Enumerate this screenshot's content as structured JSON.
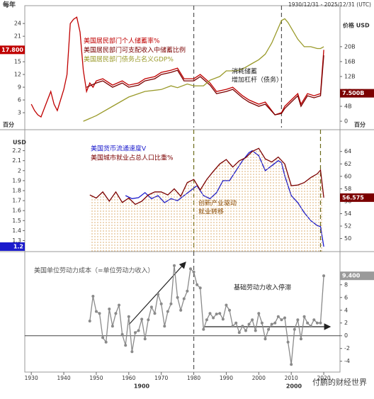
{
  "header": {
    "unit": "每年",
    "range": "1930/12/31 - 2025/12/31 (UTC)",
    "watermark": "付鹏的财经世界"
  },
  "x_axis": {
    "xlim": [
      1928,
      2025
    ],
    "xticks": [
      1930,
      1940,
      1950,
      1960,
      1970,
      1980,
      1990,
      2000,
      2010,
      2020
    ],
    "era_labels": [
      "1900",
      "2000"
    ]
  },
  "chart_data": [
    {
      "type": "line",
      "y_title": "百分",
      "y2_title": "价格 USD",
      "y2_unit": "百分",
      "ylim": [
        -0.5,
        28.2
      ],
      "yticks": [
        3,
        6,
        9,
        12,
        15,
        18,
        21,
        24
      ],
      "y2lim": [
        -1.7,
        31
      ],
      "y2ticks": [
        0,
        {
          "value": 4,
          "label": "4B"
        },
        {
          "value": 8,
          "label": "8B"
        },
        {
          "value": 12,
          "label": "12B"
        },
        {
          "value": 16,
          "label": "16B"
        },
        {
          "value": 20,
          "label": "20B"
        }
      ],
      "annotations": [
        "消耗储蓄",
        "增加杠杆（债务）"
      ],
      "vlines": [
        {
          "x": 1980,
          "color": "#555555"
        },
        {
          "x": 2007,
          "color": "#555555"
        }
      ],
      "end_labels": [
        {
          "label": "17.800",
          "value": 17.8,
          "axis": "y",
          "color": "#c00000"
        },
        {
          "label": "7.500B",
          "value": 7.5,
          "axis": "y2",
          "color": "#7b0000"
        }
      ],
      "series": [
        {
          "name": "美国居民部门个人储蓄率%",
          "color": "#c00000",
          "axis": "y",
          "x": [
            1930,
            1931,
            1932,
            1933,
            1934,
            1935,
            1936,
            1937,
            1938,
            1939,
            1940,
            1941,
            1942,
            1943,
            1944,
            1945,
            1946,
            1947,
            1948,
            1949,
            1950,
            1952,
            1955,
            1958,
            1960,
            1963,
            1965,
            1968,
            1970,
            1973,
            1975,
            1977,
            1980,
            1982,
            1985,
            1987,
            1990,
            1992,
            1995,
            1997,
            2000,
            2002,
            2005,
            2007,
            2008,
            2010,
            2012,
            2013,
            2015,
            2017,
            2019,
            2020
          ],
          "values": [
            5,
            3.5,
            2.5,
            2,
            4,
            6,
            8,
            5,
            3.5,
            6,
            8.5,
            12,
            24,
            25,
            25.5,
            22,
            13,
            8,
            10,
            9,
            10.5,
            11,
            9.5,
            10.5,
            9.5,
            10,
            11,
            11.5,
            12.5,
            13,
            13.5,
            11,
            11,
            12,
            10,
            8,
            8.5,
            9,
            7,
            6,
            5,
            5.5,
            2.5,
            3,
            4.5,
            6,
            7.5,
            5,
            7.5,
            7,
            7.5,
            17.8
          ]
        },
        {
          "name": "美国居民部门可支配收入中储蓄比例",
          "color": "#7b0000",
          "axis": "y",
          "x": [
            1947,
            1950,
            1952,
            1955,
            1958,
            1960,
            1963,
            1965,
            1968,
            1970,
            1973,
            1975,
            1977,
            1980,
            1982,
            1985,
            1987,
            1990,
            1992,
            1995,
            1997,
            2000,
            2002,
            2005,
            2007,
            2008,
            2010,
            2012,
            2013,
            2015,
            2017,
            2019,
            2020
          ],
          "values": [
            9,
            10,
            10.5,
            9,
            10,
            9,
            9.5,
            10.5,
            11,
            12,
            12.5,
            13,
            10.5,
            10.5,
            11.5,
            9.5,
            7.5,
            8,
            8.5,
            6.5,
            5.5,
            4.5,
            5,
            2.5,
            2.8,
            4,
            5.5,
            7,
            4.5,
            7,
            6.5,
            7,
            16.5
          ]
        },
        {
          "name": "美国居民部门债务占名义GDP%",
          "color": "#9a9a2a",
          "axis": "y2",
          "x": [
            1946,
            1950,
            1955,
            1960,
            1965,
            1970,
            1973,
            1975,
            1978,
            1980,
            1983,
            1985,
            1988,
            1990,
            1993,
            1995,
            1998,
            2000,
            2002,
            2004,
            2006,
            2007,
            2008,
            2009,
            2010,
            2012,
            2014,
            2016,
            2018,
            2019,
            2020
          ],
          "values": [
            0,
            1.5,
            4,
            6.5,
            8,
            8.5,
            9.5,
            9,
            10,
            9.5,
            9.5,
            11,
            12,
            13.5,
            13.5,
            14,
            15.5,
            16.5,
            18,
            21,
            25,
            27,
            27.5,
            26.5,
            25,
            22,
            20,
            20,
            19.5,
            19.5,
            20
          ]
        }
      ]
    },
    {
      "type": "line",
      "y_title": "USD",
      "ylim": [
        1.19,
        2.41
      ],
      "yticks": [
        1.3,
        1.4,
        1.5,
        1.6,
        1.7,
        1.8,
        1.9,
        2,
        2.1,
        2.2
      ],
      "y2lim": [
        47.9,
        67.5
      ],
      "y2ticks": [
        50,
        52,
        54,
        56,
        58,
        60,
        62,
        64
      ],
      "annotations": [
        "创新产业驱动",
        "就业转移"
      ],
      "vlines": [
        {
          "x": 1980,
          "color": "#6b6b1a"
        },
        {
          "x": 2019,
          "color": "#6b6b1a"
        }
      ],
      "end_labels": [
        {
          "label": "56.575",
          "value": 56.575,
          "axis": "y2",
          "color": "#7b0000"
        },
        {
          "label": "1.2",
          "value": 1.24,
          "axis": "y",
          "color": "#1a1acc"
        }
      ],
      "series": [
        {
          "name": "美国货币流通速度V",
          "color": "#1a1acc",
          "axis": "y",
          "x": [
            1959,
            1961,
            1963,
            1965,
            1967,
            1969,
            1971,
            1973,
            1975,
            1977,
            1979,
            1981,
            1983,
            1985,
            1987,
            1989,
            1991,
            1993,
            1995,
            1997,
            1998,
            2000,
            2002,
            2004,
            2006,
            2007,
            2008,
            2010,
            2012,
            2014,
            2016,
            2018,
            2019,
            2020
          ],
          "values": [
            1.75,
            1.72,
            1.73,
            1.78,
            1.72,
            1.75,
            1.68,
            1.72,
            1.7,
            1.75,
            1.8,
            1.85,
            1.75,
            1.72,
            1.78,
            1.9,
            1.9,
            2,
            2.1,
            2.18,
            2.2,
            2.15,
            2,
            2.05,
            2.1,
            2.08,
            1.95,
            1.75,
            1.68,
            1.58,
            1.5,
            1.45,
            1.44,
            1.24
          ]
        },
        {
          "name": "美国城市就业占总人口比重%",
          "color": "#7b0000",
          "axis": "y2",
          "fill": true,
          "x": [
            1948,
            1950,
            1952,
            1954,
            1956,
            1958,
            1960,
            1962,
            1964,
            1966,
            1968,
            1970,
            1972,
            1974,
            1976,
            1978,
            1980,
            1982,
            1984,
            1986,
            1988,
            1990,
            1992,
            1994,
            1996,
            1998,
            2000,
            2002,
            2004,
            2006,
            2008,
            2010,
            2012,
            2014,
            2016,
            2018,
            2019,
            2020
          ],
          "values": [
            57,
            56.5,
            57.5,
            56,
            57.5,
            55.8,
            56.5,
            55.5,
            56,
            57,
            57.5,
            57.5,
            57,
            58,
            56.8,
            59,
            59.5,
            57.8,
            59.5,
            60.8,
            62,
            62.7,
            61.5,
            62.5,
            63,
            64,
            64.5,
            62.8,
            62.3,
            63.1,
            62,
            58.5,
            58.6,
            59,
            59.8,
            60.4,
            61,
            56.575
          ]
        }
      ]
    },
    {
      "type": "line",
      "title": "美国单位劳动力成本（=单位劳动力收入）",
      "y2lim": [
        -5.7,
        13.2
      ],
      "y2ticks": [
        -4,
        -2,
        0,
        2,
        4,
        6,
        8
      ],
      "annotations": [
        "基础劳动力收入停滞"
      ],
      "vlines": [
        {
          "x": 1980,
          "color": "#555555"
        }
      ],
      "zero_line": true,
      "end_labels": [
        {
          "label": "9.400",
          "value": 9.4,
          "axis": "y2",
          "color": "#9a9a9a"
        }
      ],
      "series": [
        {
          "color": "#8a8a8a",
          "axis": "y2",
          "markers": true,
          "x": [
            1948,
            1949,
            1950,
            1951,
            1952,
            1953,
            1954,
            1955,
            1956,
            1957,
            1958,
            1959,
            1960,
            1961,
            1962,
            1963,
            1964,
            1965,
            1966,
            1967,
            1968,
            1969,
            1970,
            1971,
            1972,
            1973,
            1974,
            1975,
            1976,
            1977,
            1978,
            1979,
            1980,
            1981,
            1982,
            1983,
            1984,
            1985,
            1986,
            1987,
            1988,
            1989,
            1990,
            1991,
            1992,
            1993,
            1994,
            1995,
            1996,
            1997,
            1998,
            1999,
            2000,
            2001,
            2002,
            2003,
            2004,
            2005,
            2006,
            2007,
            2008,
            2009,
            2010,
            2011,
            2012,
            2013,
            2014,
            2015,
            2016,
            2017,
            2018,
            2019,
            2020
          ],
          "values": [
            2.3,
            6.2,
            3.8,
            3.5,
            -0.3,
            -1,
            4.2,
            1.5,
            3.5,
            4.8,
            0.2,
            -1.5,
            3,
            -2.5,
            0.5,
            0.8,
            2.6,
            -0.5,
            2.5,
            4.5,
            3.5,
            6.5,
            5,
            1.5,
            3.8,
            5,
            11,
            6,
            4,
            5.8,
            7,
            10.5,
            10,
            8,
            7.5,
            1,
            2.5,
            3.5,
            2.8,
            3.4,
            3.5,
            2.6,
            4.8,
            4,
            1.5,
            2,
            0.5,
            1.5,
            0.8,
            1.8,
            2.5,
            0.8,
            3.5,
            2,
            -0.5,
            1,
            1.8,
            2,
            3,
            2.5,
            2.8,
            -1,
            -4.5,
            1,
            2.5,
            -0.5,
            3,
            2,
            1.5,
            2.5,
            2,
            2,
            9.4
          ]
        }
      ]
    }
  ]
}
